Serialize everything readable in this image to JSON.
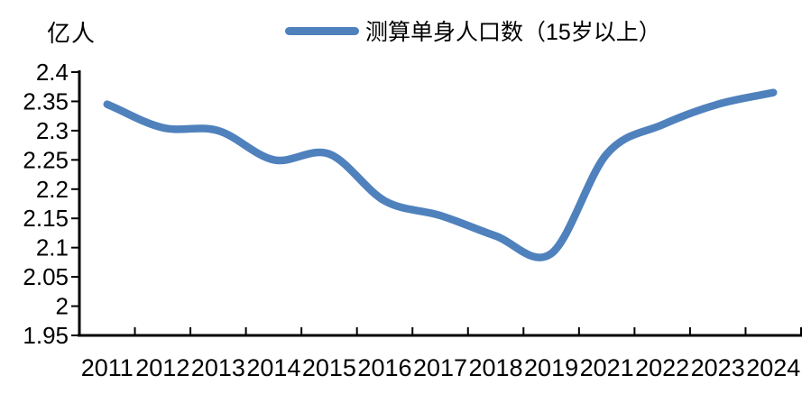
{
  "unit_label": "亿人",
  "legend": {
    "label": "测算单身人口数（15岁以上）",
    "line_color": "#4F81BD"
  },
  "chart_data": {
    "type": "line",
    "title": "",
    "xlabel": "",
    "ylabel": "亿人",
    "categories": [
      "2011",
      "2012",
      "2013",
      "2014",
      "2015",
      "2016",
      "2017",
      "2018",
      "2019",
      "2021",
      "2022",
      "2023",
      "2024"
    ],
    "series": [
      {
        "name": "测算单身人口数（15岁以上）",
        "color": "#4F81BD",
        "values": [
          2.345,
          2.305,
          2.3,
          2.25,
          2.26,
          2.18,
          2.155,
          2.12,
          2.09,
          2.26,
          2.31,
          2.345,
          2.365
        ]
      }
    ],
    "ylim": [
      1.95,
      2.4
    ],
    "ytick_labels": [
      "2.4",
      "2.35",
      "2.3",
      "2.25",
      "2.2",
      "2.15",
      "2.1",
      "2.05",
      "2",
      "1.95"
    ],
    "ytick_values": [
      2.4,
      2.35,
      2.3,
      2.25,
      2.2,
      2.15,
      2.1,
      2.05,
      2.0,
      1.95
    ],
    "grid": false,
    "smooth": true,
    "legend_position": "top",
    "axis_color": "#000000",
    "text_color": "#000000"
  }
}
